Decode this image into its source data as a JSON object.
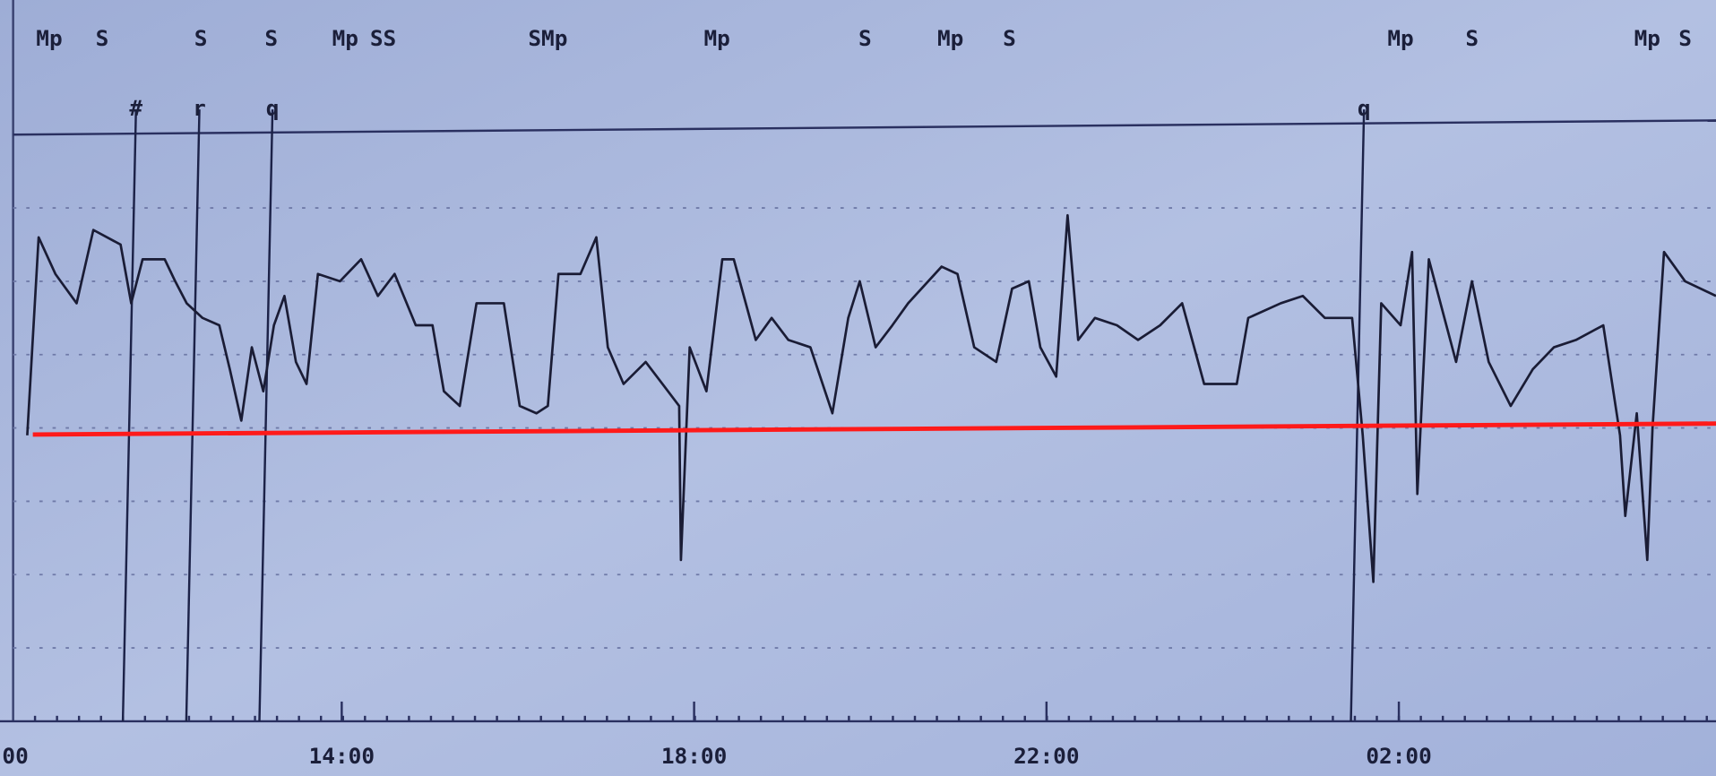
{
  "chart_data": {
    "type": "line",
    "x": [
      10.43,
      10.56,
      10.75,
      10.99,
      11.18,
      11.49,
      11.61,
      11.74,
      11.99,
      12.11,
      12.24,
      12.42,
      12.61,
      12.73,
      12.86,
      12.98,
      13.11,
      13.23,
      13.35,
      13.48,
      13.6,
      13.73,
      13.98,
      14.22,
      14.41,
      14.6,
      14.84,
      15.03,
      15.16,
      15.34,
      15.53,
      15.84,
      16.02,
      16.21,
      16.34,
      16.46,
      16.71,
      16.89,
      17.02,
      17.2,
      17.45,
      17.64,
      17.83,
      17.85,
      17.95,
      18.14,
      18.32,
      18.45,
      18.7,
      18.88,
      19.07,
      19.32,
      19.57,
      19.75,
      19.88,
      20.06,
      20.25,
      20.43,
      20.81,
      20.99,
      21.18,
      21.43,
      21.61,
      21.8,
      21.93,
      22.11,
      22.24,
      22.36,
      22.55,
      22.8,
      23.04,
      23.29,
      23.54,
      23.79,
      24.16,
      24.29,
      24.66,
      24.91,
      25.16,
      25.47,
      25.59,
      25.71,
      25.8,
      26.02,
      26.15,
      26.21,
      26.34,
      26.65,
      26.83,
      27.02,
      27.27,
      27.52,
      27.76,
      28.01,
      28.32,
      28.51,
      28.57,
      28.7,
      28.82,
      28.88,
      29.01,
      29.25,
      29.6
    ],
    "series": [
      {
        "color": "#1a1c35",
        "values": [
          3.9,
          6.6,
          6.1,
          5.7,
          6.7,
          6.5,
          5.7,
          6.3,
          6.3,
          6.0,
          5.7,
          5.5,
          5.4,
          4.8,
          4.1,
          5.1,
          4.5,
          5.4,
          5.8,
          4.9,
          4.6,
          6.1,
          6.0,
          6.3,
          5.8,
          6.1,
          5.4,
          5.4,
          4.5,
          4.3,
          5.7,
          5.7,
          4.3,
          4.2,
          4.3,
          6.1,
          6.1,
          6.6,
          5.1,
          4.6,
          4.9,
          4.6,
          4.3,
          2.2,
          5.1,
          4.5,
          6.3,
          6.3,
          5.2,
          5.5,
          5.2,
          5.1,
          4.2,
          5.5,
          6.0,
          5.1,
          5.4,
          5.7,
          6.2,
          6.1,
          5.1,
          4.9,
          5.9,
          6.0,
          5.1,
          4.7,
          6.9,
          5.2,
          5.5,
          5.4,
          5.2,
          5.4,
          5.7,
          4.6,
          4.6,
          5.5,
          5.7,
          5.8,
          5.5,
          5.5,
          3.9,
          1.9,
          5.7,
          5.4,
          6.4,
          3.1,
          6.3,
          4.9,
          6.0,
          4.9,
          4.3,
          4.8,
          5.1,
          5.2,
          5.4,
          3.9,
          2.8,
          4.2,
          2.2,
          4.0,
          6.4,
          6.0,
          5.8
        ]
      }
    ],
    "xlim": [
      10.27,
      29.6
    ],
    "ylim": [
      0,
      8
    ],
    "xticks": [
      {
        "value": 10,
        "label": "00"
      },
      {
        "value": 14,
        "label": "14:00"
      },
      {
        "value": 18,
        "label": "18:00"
      },
      {
        "value": 22,
        "label": "22:00"
      },
      {
        "value": 26,
        "label": "02:00"
      }
    ],
    "reference_line": {
      "value": 4,
      "color": "#ff1a1a"
    },
    "events": [
      {
        "label": "#",
        "x": 11.59
      },
      {
        "label": "r",
        "x": 12.31
      },
      {
        "label": "q",
        "x": 13.14
      },
      {
        "label": "q",
        "x": 25.53
      }
    ],
    "annotations": [
      {
        "text": "Mp",
        "x": 10.68
      },
      {
        "text": "S",
        "x": 11.28
      },
      {
        "text": "S",
        "x": 12.4
      },
      {
        "text": "S",
        "x": 13.2
      },
      {
        "text": "Mp",
        "x": 14.04
      },
      {
        "text": "SS",
        "x": 14.47
      },
      {
        "text": "SMp",
        "x": 16.34
      },
      {
        "text": "Mp",
        "x": 18.26
      },
      {
        "text": "S",
        "x": 19.94
      },
      {
        "text": "Mp",
        "x": 20.91
      },
      {
        "text": "S",
        "x": 21.58
      },
      {
        "text": "Mp",
        "x": 26.02
      },
      {
        "text": "S",
        "x": 26.83
      },
      {
        "text": "Mp",
        "x": 28.82
      },
      {
        "text": "S",
        "x": 29.25
      }
    ]
  }
}
